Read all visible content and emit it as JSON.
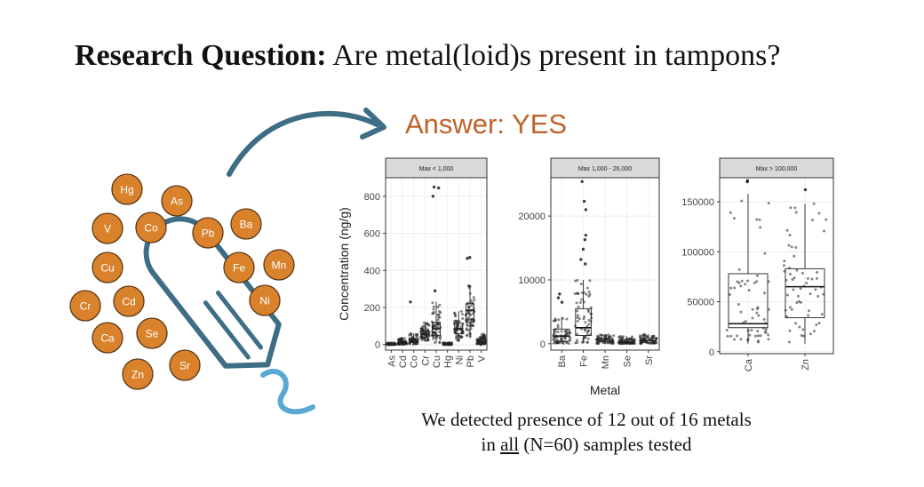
{
  "slide": {
    "title_bold": "Research Question:",
    "title_rest": "Are metal(loid)s present in tampons?",
    "answer": "Answer: YES",
    "caption_line1": "We detected presence of 12 out of 16 metals",
    "caption_line2_pre": "in ",
    "caption_line2_underline": "all",
    "caption_line2_post": " (N=60) samples tested"
  },
  "illustration": {
    "metal_circles": [
      "Hg",
      "As",
      "V",
      "Co",
      "Pb",
      "Ba",
      "Cu",
      "Fe",
      "Mn",
      "Cr",
      "Cd",
      "Ni",
      "Ca",
      "Se",
      "Zn",
      "Sr"
    ],
    "circle_fill": "#d9822b",
    "tampon_color": "#3e6e86",
    "string_color": "#5aa8d4",
    "arrow_color": "#3e6e86"
  },
  "chart_data": [
    {
      "type": "box",
      "facet_title": "Max < 1,000",
      "ylabel": "Concentration (ng/g)",
      "categories": [
        "As",
        "Cd",
        "Co",
        "Cr",
        "Cu",
        "Hg",
        "Ni",
        "Pb",
        "V"
      ],
      "ylim": [
        -30,
        900
      ],
      "yticks": [
        0,
        200,
        400,
        600,
        800
      ],
      "boxes": [
        {
          "q1": 0,
          "median": 2,
          "q3": 5,
          "whisker_low": 0,
          "whisker_high": 10
        },
        {
          "q1": 5,
          "median": 10,
          "q3": 18,
          "whisker_low": 0,
          "whisker_high": 35
        },
        {
          "q1": 12,
          "median": 20,
          "q3": 32,
          "whisker_low": 0,
          "whisker_high": 60
        },
        {
          "q1": 40,
          "median": 55,
          "q3": 75,
          "whisker_low": 20,
          "whisker_high": 120
        },
        {
          "q1": 50,
          "median": 85,
          "q3": 120,
          "whisker_low": 10,
          "whisker_high": 230
        },
        {
          "q1": 0,
          "median": 2,
          "q3": 5,
          "whisker_low": 0,
          "whisker_high": 10
        },
        {
          "q1": 60,
          "median": 85,
          "q3": 115,
          "whisker_low": 20,
          "whisker_high": 180
        },
        {
          "q1": 120,
          "median": 185,
          "q3": 220,
          "whisker_low": 40,
          "whisker_high": 320
        },
        {
          "q1": 5,
          "median": 15,
          "q3": 30,
          "whisker_low": 0,
          "whisker_high": 60
        }
      ],
      "outliers": [
        {
          "category": "Co",
          "value": 230
        },
        {
          "category": "Cu",
          "value": 850
        },
        {
          "category": "Cu",
          "value": 845
        },
        {
          "category": "Cu",
          "value": 800
        },
        {
          "category": "Cu",
          "value": 290
        },
        {
          "category": "Pb",
          "value": 470
        },
        {
          "category": "Pb",
          "value": 465
        }
      ]
    },
    {
      "type": "box",
      "facet_title": "Max 1,000 - 26,000",
      "xlabel": "Metal",
      "categories": [
        "Ba",
        "Fe",
        "Mn",
        "Se",
        "Sr"
      ],
      "ylim": [
        -1000,
        26000
      ],
      "yticks": [
        0,
        10000,
        20000
      ],
      "boxes": [
        {
          "q1": 400,
          "median": 1200,
          "q3": 2300,
          "whisker_low": 0,
          "whisker_high": 4200
        },
        {
          "q1": 1300,
          "median": 2500,
          "q3": 5500,
          "whisker_low": 100,
          "whisker_high": 10000
        },
        {
          "q1": 300,
          "median": 600,
          "q3": 900,
          "whisker_low": 0,
          "whisker_high": 1500
        },
        {
          "q1": 100,
          "median": 300,
          "q3": 600,
          "whisker_low": 0,
          "whisker_high": 1200
        },
        {
          "q1": 200,
          "median": 500,
          "q3": 900,
          "whisker_low": 0,
          "whisker_high": 1500
        }
      ],
      "outliers": [
        {
          "category": "Ba",
          "value": 7800
        },
        {
          "category": "Ba",
          "value": 7200
        },
        {
          "category": "Ba",
          "value": 6500
        },
        {
          "category": "Fe",
          "value": 25400
        },
        {
          "category": "Fe",
          "value": 22300
        },
        {
          "category": "Fe",
          "value": 21000
        },
        {
          "category": "Fe",
          "value": 17000
        },
        {
          "category": "Fe",
          "value": 16300
        },
        {
          "category": "Fe",
          "value": 14800
        },
        {
          "category": "Fe",
          "value": 13200
        },
        {
          "category": "Fe",
          "value": 12500
        }
      ]
    },
    {
      "type": "box",
      "facet_title": "Max > 100,000",
      "categories": [
        "Ca",
        "Zn"
      ],
      "ylim": [
        -2000,
        174000
      ],
      "yticks": [
        0,
        50000,
        100000,
        150000
      ],
      "boxes": [
        {
          "q1": 24000,
          "median": 28000,
          "q3": 78000,
          "whisker_low": 8000,
          "whisker_high": 158000
        },
        {
          "q1": 34000,
          "median": 65000,
          "q3": 83000,
          "whisker_low": 8000,
          "whisker_high": 148000
        }
      ],
      "outliers": [
        {
          "category": "Ca",
          "value": 171000
        },
        {
          "category": "Ca",
          "value": 170000
        },
        {
          "category": "Zn",
          "value": 162000
        }
      ]
    }
  ]
}
